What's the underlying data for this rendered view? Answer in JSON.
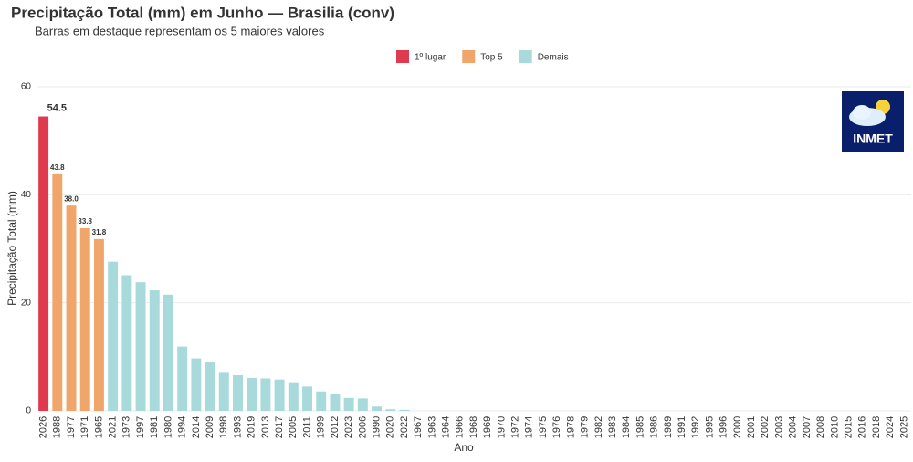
{
  "chart_data": {
    "type": "bar",
    "title": "Precipitação Total (mm) em Junho — Brasilia (conv)",
    "subtitle": "Barras em destaque representam os 5 maiores valores",
    "x_label": "Ano",
    "y_label": "Precipitação Total (mm)",
    "logo_text": "INMET",
    "legend": [
      {
        "name": "1º lugar",
        "color": "#e03a4e"
      },
      {
        "name": "Top 5",
        "color": "#f0a56b"
      },
      {
        "name": "Demais",
        "color": "#a8dadc"
      }
    ],
    "categories": [
      "2026",
      "1988",
      "1977",
      "1971",
      "1965",
      "2021",
      "1973",
      "1997",
      "1981",
      "1980",
      "1994",
      "2014",
      "2009",
      "1998",
      "1993",
      "2019",
      "2013",
      "2017",
      "2005",
      "2011",
      "1999",
      "2012",
      "2023",
      "2006",
      "1990",
      "2020",
      "2022",
      "1967",
      "1963",
      "1964",
      "1966",
      "1968",
      "1969",
      "1970",
      "1972",
      "1974",
      "1975",
      "1976",
      "1978",
      "1979",
      "1982",
      "1983",
      "1984",
      "1985",
      "1986",
      "1989",
      "1991",
      "1992",
      "1995",
      "1996",
      "2000",
      "2001",
      "2002",
      "2003",
      "2004",
      "2007",
      "2008",
      "2010",
      "2015",
      "2016",
      "2018",
      "2024",
      "2025"
    ],
    "values": [
      54.5,
      43.8,
      38.0,
      33.8,
      31.8,
      27.6,
      25.1,
      23.8,
      22.3,
      21.5,
      11.9,
      9.7,
      9.1,
      7.2,
      6.6,
      6.1,
      6.0,
      5.8,
      5.3,
      4.5,
      3.6,
      3.2,
      2.4,
      2.3,
      0.8,
      0.3,
      0.2,
      0,
      0,
      0,
      0,
      0,
      0,
      0,
      0,
      0,
      0,
      0,
      0,
      0,
      0,
      0,
      0,
      0,
      0,
      0,
      0,
      0,
      0,
      0,
      0,
      0,
      0,
      0,
      0,
      0,
      0,
      0,
      0,
      0,
      0,
      0,
      0
    ],
    "value_labels": [
      "54.5",
      "43.8",
      "38.0",
      "33.8",
      "31.8",
      null,
      null,
      null,
      null,
      null,
      null,
      null,
      null,
      null,
      null,
      null,
      null,
      null,
      null,
      null,
      null,
      null,
      null,
      null,
      null,
      null,
      null,
      null,
      null,
      null,
      null,
      null,
      null,
      null,
      null,
      null,
      null,
      null,
      null,
      null,
      null,
      null,
      null,
      null,
      null,
      null,
      null,
      null,
      null,
      null,
      null,
      null,
      null,
      null,
      null,
      null,
      null,
      null,
      null,
      null,
      null,
      null,
      null
    ],
    "group": [
      0,
      1,
      1,
      1,
      1,
      2,
      2,
      2,
      2,
      2,
      2,
      2,
      2,
      2,
      2,
      2,
      2,
      2,
      2,
      2,
      2,
      2,
      2,
      2,
      2,
      2,
      2,
      2,
      2,
      2,
      2,
      2,
      2,
      2,
      2,
      2,
      2,
      2,
      2,
      2,
      2,
      2,
      2,
      2,
      2,
      2,
      2,
      2,
      2,
      2,
      2,
      2,
      2,
      2,
      2,
      2,
      2,
      2,
      2,
      2,
      2,
      2,
      2
    ],
    "ylim": [
      0,
      60
    ],
    "yticks": [
      0,
      20,
      40,
      60
    ],
    "grid": true
  }
}
